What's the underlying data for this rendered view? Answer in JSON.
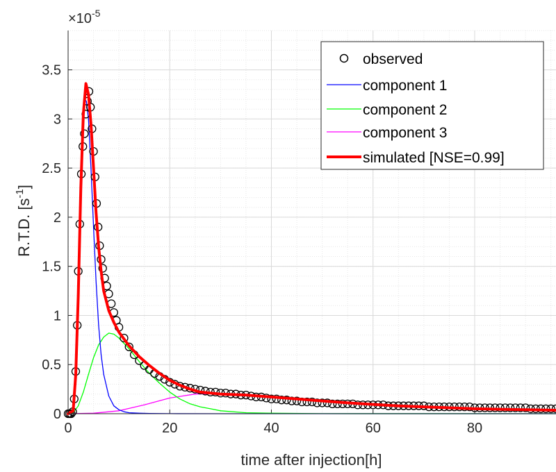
{
  "chart_data": {
    "type": "line",
    "title": "",
    "xlabel": "time after injection[h]",
    "ylabel": "R.T.D. [s",
    "ylabel_sup": "-1",
    "ylabel_close": "]",
    "exponent_base": "×10",
    "exponent_power": "-5",
    "xlim": [
      0,
      96
    ],
    "ylim": [
      0,
      3.9
    ],
    "xticks": [
      0,
      20,
      40,
      60,
      80
    ],
    "xtick_labels": [
      "0",
      "20",
      "40",
      "60",
      "80"
    ],
    "yticks": [
      0,
      0.5,
      1,
      1.5,
      2,
      2.5,
      3,
      3.5
    ],
    "ytick_labels": [
      "0",
      "0.5",
      "1",
      "1.5",
      "2",
      "2.5",
      "3",
      "3.5"
    ],
    "grid": true,
    "legend_position": "top-right",
    "y_unit_multiplier": 1e-05,
    "series": [
      {
        "name": "observed",
        "style": "markers",
        "color": "#000000",
        "x": [
          0,
          0.3,
          0.6,
          0.9,
          1.2,
          1.5,
          1.8,
          2.0,
          2.3,
          2.6,
          2.9,
          3.2,
          3.5,
          3.8,
          4.1,
          4.4,
          4.7,
          5.0,
          5.3,
          5.6,
          5.9,
          6.2,
          6.5,
          6.8,
          7.2,
          7.6,
          8.0,
          8.5,
          9.0,
          9.5,
          10,
          11,
          12,
          13,
          14,
          15,
          16,
          17,
          18,
          19,
          20,
          21,
          22,
          23,
          24,
          25,
          26,
          27,
          28,
          29,
          30,
          31,
          32,
          33,
          34,
          35,
          36,
          37,
          38,
          39,
          40,
          41,
          42,
          43,
          44,
          45,
          46,
          47,
          48,
          49,
          50,
          51,
          52,
          53,
          54,
          55,
          56,
          57,
          58,
          59,
          60,
          61,
          62,
          63,
          64,
          65,
          66,
          67,
          68,
          69,
          70,
          71,
          72,
          73,
          74,
          75,
          76,
          77,
          78,
          79,
          80,
          81,
          82,
          83,
          84,
          85,
          86,
          87,
          88,
          89,
          90,
          91,
          92,
          93,
          94,
          95,
          96
        ],
        "values": [
          0,
          0,
          0,
          0.02,
          0.15,
          0.43,
          0.9,
          1.45,
          1.93,
          2.44,
          2.72,
          2.85,
          3.05,
          3.18,
          3.28,
          3.12,
          2.9,
          2.67,
          2.41,
          2.14,
          1.9,
          1.71,
          1.57,
          1.48,
          1.38,
          1.3,
          1.22,
          1.12,
          1.03,
          0.95,
          0.88,
          0.77,
          0.68,
          0.6,
          0.54,
          0.49,
          0.45,
          0.41,
          0.38,
          0.35,
          0.32,
          0.3,
          0.28,
          0.27,
          0.26,
          0.25,
          0.24,
          0.23,
          0.22,
          0.22,
          0.21,
          0.21,
          0.2,
          0.2,
          0.19,
          0.19,
          0.18,
          0.17,
          0.17,
          0.16,
          0.15,
          0.15,
          0.14,
          0.14,
          0.13,
          0.13,
          0.12,
          0.12,
          0.12,
          0.11,
          0.11,
          0.11,
          0.1,
          0.1,
          0.1,
          0.1,
          0.1,
          0.09,
          0.09,
          0.09,
          0.09,
          0.09,
          0.09,
          0.08,
          0.08,
          0.08,
          0.08,
          0.08,
          0.08,
          0.08,
          0.08,
          0.07,
          0.07,
          0.07,
          0.07,
          0.07,
          0.07,
          0.07,
          0.07,
          0.07,
          0.06,
          0.06,
          0.06,
          0.06,
          0.06,
          0.06,
          0.06,
          0.06,
          0.06,
          0.06,
          0.06,
          0.05,
          0.05,
          0.05,
          0.05,
          0.05,
          0.05
        ]
      },
      {
        "name": "component 1",
        "style": "line",
        "color": "#0000ff",
        "x": [
          0,
          1.0,
          1.5,
          2.0,
          2.5,
          3.0,
          3.3,
          3.6,
          4.0,
          4.5,
          5.0,
          5.5,
          6.0,
          6.5,
          7.0,
          8.0,
          9.0,
          10.0,
          11.0,
          12.0,
          14.0,
          16.0,
          20.0,
          30.0,
          96.0
        ],
        "values": [
          0,
          0.02,
          0.3,
          1.1,
          2.2,
          3.0,
          3.2,
          3.18,
          3.0,
          2.5,
          1.9,
          1.35,
          0.9,
          0.6,
          0.4,
          0.18,
          0.08,
          0.04,
          0.02,
          0.01,
          0.005,
          0.002,
          0.001,
          0,
          0
        ]
      },
      {
        "name": "component 2",
        "style": "line",
        "color": "#00ff00",
        "x": [
          0,
          1.0,
          2.0,
          3.0,
          4.0,
          5.0,
          6.0,
          7.0,
          8.0,
          9.0,
          10.0,
          12.0,
          14.0,
          16.0,
          18.0,
          20.0,
          22.0,
          24.0,
          26.0,
          28.0,
          30.0,
          35.0,
          40.0,
          50.0,
          96.0
        ],
        "values": [
          0,
          0.01,
          0.08,
          0.22,
          0.4,
          0.57,
          0.7,
          0.78,
          0.82,
          0.81,
          0.77,
          0.66,
          0.53,
          0.41,
          0.31,
          0.22,
          0.15,
          0.1,
          0.07,
          0.05,
          0.03,
          0.01,
          0.005,
          0.001,
          0
        ]
      },
      {
        "name": "component 3",
        "style": "line",
        "color": "#ff00ff",
        "x": [
          0,
          5,
          10,
          15,
          20,
          25,
          30,
          35,
          40,
          45,
          50,
          55,
          60,
          65,
          70,
          75,
          80,
          85,
          90,
          96
        ],
        "values": [
          0,
          0.005,
          0.03,
          0.09,
          0.16,
          0.2,
          0.205,
          0.19,
          0.17,
          0.15,
          0.13,
          0.11,
          0.095,
          0.08,
          0.07,
          0.06,
          0.05,
          0.045,
          0.04,
          0.035
        ]
      },
      {
        "name": "simulated [NSE=0.99]",
        "style": "line-thick",
        "color": "#ff0000",
        "x": [
          0,
          1.0,
          1.5,
          2.0,
          2.5,
          3.0,
          3.5,
          4.0,
          4.5,
          5.0,
          5.5,
          6.0,
          6.5,
          7.0,
          8.0,
          9.0,
          10.0,
          12.0,
          14.0,
          16.0,
          18.0,
          20.0,
          22.0,
          24.0,
          26.0,
          28.0,
          30.0,
          35.0,
          40.0,
          45.0,
          50.0,
          55.0,
          60.0,
          65.0,
          70.0,
          75.0,
          80.0,
          85.0,
          90.0,
          96.0
        ],
        "values": [
          0,
          0.03,
          0.4,
          1.2,
          2.3,
          3.05,
          3.36,
          3.25,
          2.95,
          2.5,
          2.05,
          1.7,
          1.45,
          1.25,
          1.05,
          0.93,
          0.83,
          0.69,
          0.58,
          0.49,
          0.41,
          0.34,
          0.29,
          0.25,
          0.22,
          0.21,
          0.2,
          0.19,
          0.17,
          0.15,
          0.13,
          0.11,
          0.095,
          0.08,
          0.07,
          0.06,
          0.05,
          0.045,
          0.04,
          0.035
        ]
      }
    ]
  }
}
